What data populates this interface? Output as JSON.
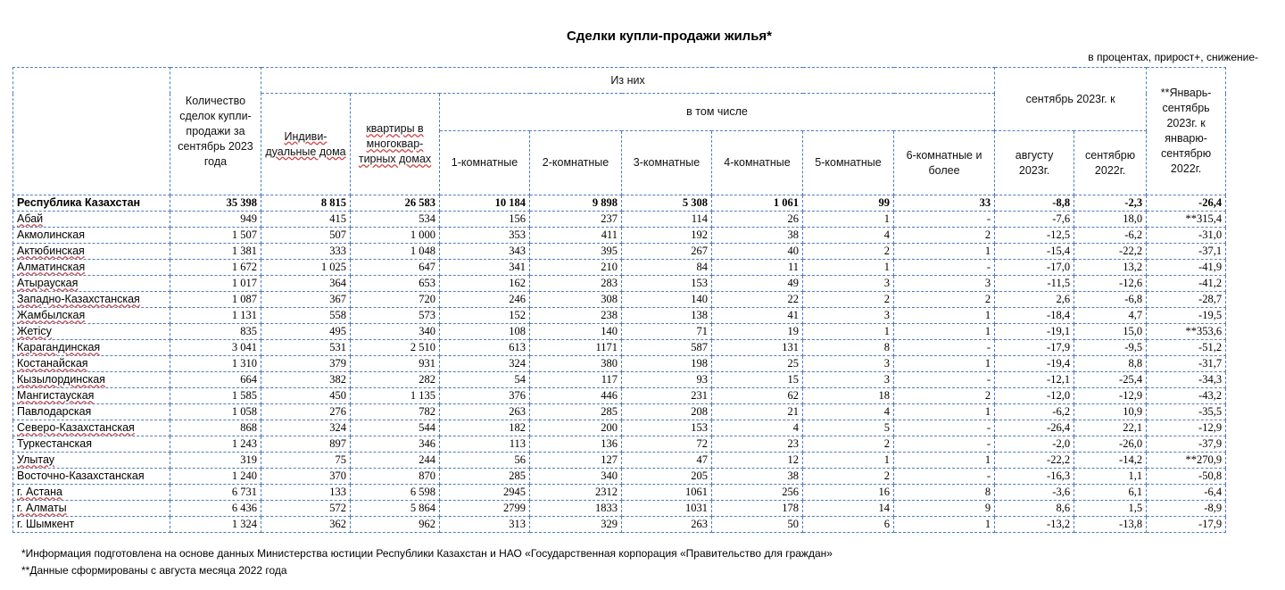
{
  "title": "Сделки купли-продажи жилья*",
  "unit_note": "в процентах, прирост+, снижение-",
  "headers": {
    "count": "Количество сделок купли-продажи за сентябрь 2023 года",
    "of_them": "Из них",
    "individual": "Индиви-дуальные дома",
    "apartments": "квартиры в многоквар-тирных домах",
    "including": "в том числе",
    "r1": "1-комнатные",
    "r2": "2-комнатные",
    "r3": "3-комнатные",
    "r4": "4-комнатные",
    "r5": "5-комнатные",
    "r6": "6-комнатные и более",
    "sep_group": "сентябрь 2023г. к",
    "aug": "августу 2023г.",
    "sep2022": "сентябрю 2022г.",
    "janSep": "**Январь-сентябрь 2023г. к январю-сентябрю 2022г."
  },
  "rows": [
    [
      "Республика Казахстан",
      "35 398",
      "8 815",
      "26 583",
      "10 184",
      "9 898",
      "5 308",
      "1 061",
      "99",
      "33",
      "-8,8",
      "-2,3",
      "-26,4"
    ],
    [
      "Абай",
      "949",
      "415",
      "534",
      "156",
      "237",
      "114",
      "26",
      "1",
      "-",
      "-7,6",
      "18,0",
      "**315,4"
    ],
    [
      "Акмолинская",
      "1 507",
      "507",
      "1 000",
      "353",
      "411",
      "192",
      "38",
      "4",
      "2",
      "-12,5",
      "-6,2",
      "-31,0"
    ],
    [
      "Актюбинская",
      "1 381",
      "333",
      "1 048",
      "343",
      "395",
      "267",
      "40",
      "2",
      "1",
      "-15,4",
      "-22,2",
      "-37,1"
    ],
    [
      "Алматинская",
      "1 672",
      "1 025",
      "647",
      "341",
      "210",
      "84",
      "11",
      "1",
      "-",
      "-17,0",
      "13,2",
      "-41,9"
    ],
    [
      "Атырауская",
      "1 017",
      "364",
      "653",
      "162",
      "283",
      "153",
      "49",
      "3",
      "3",
      "-11,5",
      "-12,6",
      "-41,2"
    ],
    [
      "Западно-Казахстанская",
      "1 087",
      "367",
      "720",
      "246",
      "308",
      "140",
      "22",
      "2",
      "2",
      "2,6",
      "-6,8",
      "-28,7"
    ],
    [
      "Жамбылская",
      "1 131",
      "558",
      "573",
      "152",
      "238",
      "138",
      "41",
      "3",
      "1",
      "-18,4",
      "4,7",
      "-19,5"
    ],
    [
      "Жетісу",
      "835",
      "495",
      "340",
      "108",
      "140",
      "71",
      "19",
      "1",
      "1",
      "-19,1",
      "15,0",
      "**353,6"
    ],
    [
      "Карагандинская",
      "3 041",
      "531",
      "2 510",
      "613",
      "1171",
      "587",
      "131",
      "8",
      "-",
      "-17,9",
      "-9,5",
      "-51,2"
    ],
    [
      "Костанайская",
      "1 310",
      "379",
      "931",
      "324",
      "380",
      "198",
      "25",
      "3",
      "1",
      "-19,4",
      "8,8",
      "-31,7"
    ],
    [
      "Кызылординская",
      "664",
      "382",
      "282",
      "54",
      "117",
      "93",
      "15",
      "3",
      "-",
      "-12,1",
      "-25,4",
      "-34,3"
    ],
    [
      "Мангистауская",
      "1 585",
      "450",
      "1 135",
      "376",
      "446",
      "231",
      "62",
      "18",
      "2",
      "-12,0",
      "-12,9",
      "-43,2"
    ],
    [
      "Павлодарская",
      "1 058",
      "276",
      "782",
      "263",
      "285",
      "208",
      "21",
      "4",
      "1",
      "-6,2",
      "10,9",
      "-35,5"
    ],
    [
      "Северо-Казахстанская",
      "868",
      "324",
      "544",
      "182",
      "200",
      "153",
      "4",
      "5",
      "-",
      "-26,4",
      "22,1",
      "-12,9"
    ],
    [
      "Туркестанская",
      "1 243",
      "897",
      "346",
      "113",
      "136",
      "72",
      "23",
      "2",
      "-",
      "-2,0",
      "-26,0",
      "-37,9"
    ],
    [
      "Улытау",
      "319",
      "75",
      "244",
      "56",
      "127",
      "47",
      "12",
      "1",
      "1",
      "-22,2",
      "-14,2",
      "**270,9"
    ],
    [
      "Восточно-Казахстанская",
      "1 240",
      "370",
      "870",
      "285",
      "340",
      "205",
      "38",
      "2",
      "-",
      "-16,3",
      "1,1",
      "-50,8"
    ],
    [
      "г. Астана",
      "6 731",
      "133",
      "6 598",
      "2945",
      "2312",
      "1061",
      "256",
      "16",
      "8",
      "-3,6",
      "6,1",
      "-6,4"
    ],
    [
      "г. Алматы",
      "6 436",
      "572",
      "5 864",
      "2799",
      "1833",
      "1031",
      "178",
      "14",
      "9",
      "8,6",
      "1,5",
      "-8,9"
    ],
    [
      "г. Шымкент",
      "1 324",
      "362",
      "962",
      "313",
      "329",
      "263",
      "50",
      "6",
      "1",
      "-13,2",
      "-13,8",
      "-17,9"
    ]
  ],
  "footnotes": [
    "*Информация подготовлена на основе данных Министерства юстиции Республики Казахстан и НАО «Государственная корпорация «Правительство для граждан»",
    "**Данные сформированы с августа месяца 2022 года"
  ]
}
